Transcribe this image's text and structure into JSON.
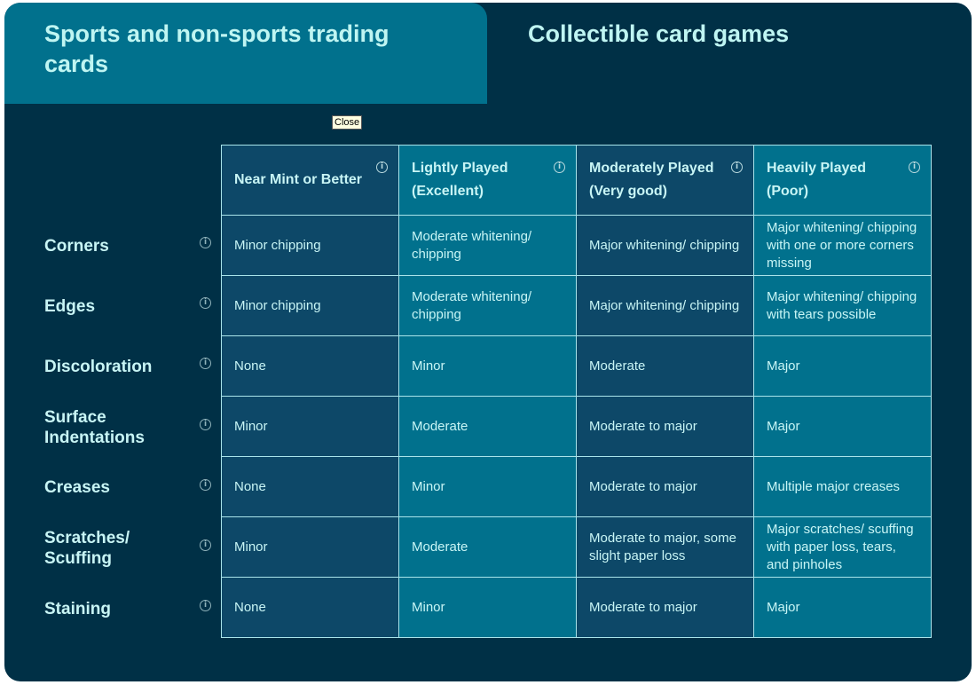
{
  "tabs": [
    {
      "label": "Sports and non-sports trading cards",
      "active": true
    },
    {
      "label": "Collectible card games",
      "active": false
    }
  ],
  "tooltip": "Close",
  "columns": [
    "Near Mint or Better",
    "Lightly Played (Excellent)",
    "Moderately Played (Very good)",
    "Heavily Played (Poor)"
  ],
  "rows": [
    {
      "label": "Corners",
      "cells": [
        "Minor chipping",
        "Moderate whitening/ chipping",
        "Major whitening/ chipping",
        "Major whitening/ chipping with one or more corners missing"
      ]
    },
    {
      "label": "Edges",
      "cells": [
        "Minor chipping",
        "Moderate whitening/ chipping",
        "Major whitening/ chipping",
        "Major whitening/ chipping with tears possible"
      ]
    },
    {
      "label": "Discoloration",
      "cells": [
        "None",
        "Minor",
        "Moderate",
        "Major"
      ]
    },
    {
      "label": "Surface Indentations",
      "cells": [
        "Minor",
        "Moderate",
        "Moderate to major",
        "Major"
      ]
    },
    {
      "label": "Creases",
      "cells": [
        "None",
        "Minor",
        "Moderate to major",
        "Multiple major creases"
      ]
    },
    {
      "label": "Scratches/ Scuffing",
      "cells": [
        "Minor",
        "Moderate",
        "Moderate to major, some slight paper loss",
        "Major scratches/ scuffing with paper loss, tears, and pinholes"
      ]
    },
    {
      "label": "Staining",
      "cells": [
        "None",
        "Minor",
        "Moderate to major",
        "Major"
      ]
    }
  ],
  "colors": {
    "background": "#003046",
    "active_tab": "#01718d",
    "column_dark": "#0d4868",
    "column_light": "#01718d",
    "text": "#c8f5f5"
  },
  "icons": {
    "info": "info-circle-icon"
  }
}
